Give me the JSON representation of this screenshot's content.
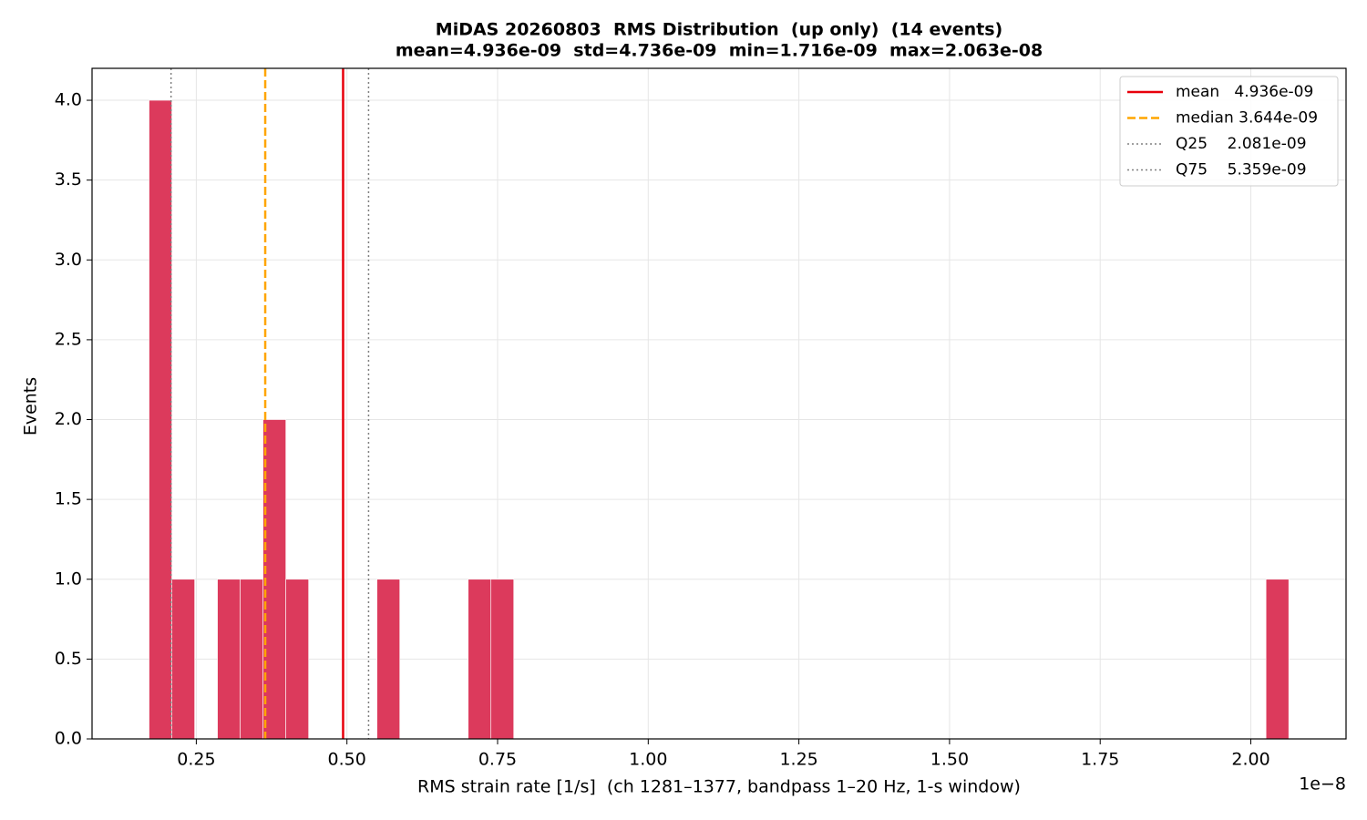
{
  "chart_data": {
    "type": "histogram",
    "title": "MiDAS 20260803  RMS Distribution  (up only)  (14 events)",
    "subtitle": "mean=4.936e-09  std=4.736e-09  min=1.716e-09  max=2.063e-08",
    "xlabel": "RMS strain rate [1/s]  (ch 1281–1377, bandpass 1–20 Hz, 1-s window)",
    "ylabel": "Events",
    "x_offset_label": "1e−8",
    "color": "#dc3a5c",
    "bins": [
      0.1716,
      0.2094,
      0.2473,
      0.2851,
      0.3229,
      0.3607,
      0.3986,
      0.4364,
      0.4742,
      0.5121,
      0.5499,
      0.5877,
      0.6255,
      0.6634,
      0.7012,
      0.739,
      0.7768,
      0.8147,
      0.8525,
      0.8903,
      0.9282,
      0.966,
      1.0038,
      1.0416,
      1.0795,
      1.1173,
      1.1551,
      1.193,
      1.2308,
      1.2686,
      1.3064,
      1.3443,
      1.3821,
      1.4199,
      1.4578,
      1.4956,
      1.5334,
      1.5712,
      1.6091,
      1.6469,
      1.6847,
      1.7225,
      1.7604,
      1.7982,
      1.836,
      1.8739,
      1.9117,
      1.9495,
      1.9873,
      2.0252,
      2.063
    ],
    "counts": [
      4,
      1,
      0,
      1,
      1,
      2,
      1,
      0,
      0,
      0,
      1,
      0,
      0,
      0,
      1,
      1,
      0,
      0,
      0,
      0,
      0,
      0,
      0,
      0,
      0,
      0,
      0,
      0,
      0,
      0,
      0,
      0,
      0,
      0,
      0,
      0,
      0,
      0,
      0,
      0,
      0,
      0,
      0,
      0,
      0,
      0,
      0,
      0,
      0,
      1
    ],
    "vlines": [
      {
        "label": "mean   4.936e-09",
        "value": 0.4936,
        "color": "#e8000b",
        "style": "solid"
      },
      {
        "label": "median 3.644e-09",
        "value": 0.3644,
        "color": "#ffa500",
        "style": "dashed"
      },
      {
        "label": "Q25    2.081e-09",
        "value": 0.2081,
        "color": "#808080",
        "style": "dotted"
      },
      {
        "label": "Q75    5.359e-09",
        "value": 0.5359,
        "color": "#808080",
        "style": "dotted"
      }
    ],
    "xlim": [
      0.077,
      2.158
    ],
    "ylim": [
      0,
      4.2
    ],
    "xticks": [
      0.25,
      {
        "value": 0.5,
        "label": "0.50"
      },
      0.75,
      {
        "value": 1,
        "label": "1.00"
      },
      1.25,
      {
        "value": 1.5,
        "label": "1.50"
      },
      1.75,
      {
        "value": 2,
        "label": "2.00"
      }
    ],
    "yticks": [
      {
        "value": 0,
        "label": "0.0"
      },
      0.5,
      {
        "value": 1,
        "label": "1.0"
      },
      1.5,
      {
        "value": 2,
        "label": "2.0"
      },
      2.5,
      {
        "value": 3,
        "label": "3.0"
      },
      3.5,
      {
        "value": 4,
        "label": "4.0"
      }
    ],
    "grid": true,
    "legend": "upper right"
  }
}
